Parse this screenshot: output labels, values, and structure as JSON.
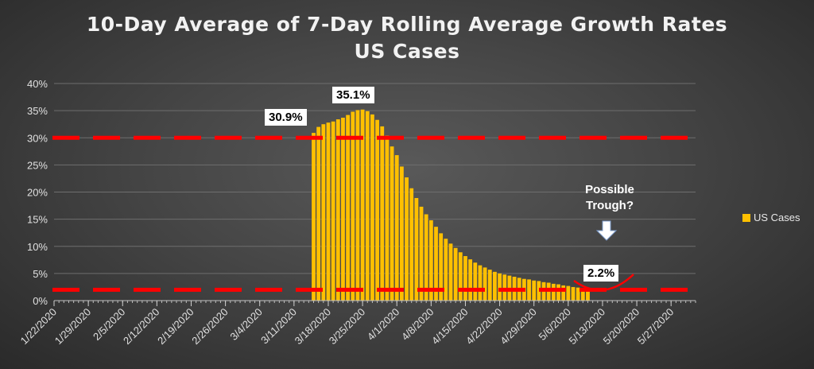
{
  "chart_data": {
    "type": "bar",
    "title": "10-Day Average of 7-Day Rolling Average Growth Rates",
    "subtitle": "US Cases",
    "xlabel": "",
    "ylabel": "",
    "ylim": [
      0,
      40
    ],
    "y_ticks": [
      "0%",
      "5%",
      "10%",
      "15%",
      "20%",
      "25%",
      "30%",
      "35%",
      "40%"
    ],
    "x_tick_labels": [
      "1/22/2020",
      "1/29/2020",
      "2/5/2020",
      "2/12/2020",
      "2/19/2020",
      "2/26/2020",
      "3/4/2020",
      "3/11/2020",
      "3/18/2020",
      "3/25/2020",
      "4/1/2020",
      "4/8/2020",
      "4/15/2020",
      "4/22/2020",
      "4/29/2020",
      "5/6/2020",
      "5/13/2020",
      "5/20/2020",
      "5/27/2020"
    ],
    "x_range": [
      "1/22/2020",
      "6/1/2020"
    ],
    "grid": true,
    "legend_position": "right",
    "series": [
      {
        "name": "US Cases",
        "color": "#ffc000",
        "start_date": "3/15/2020",
        "values": [
          30.9,
          32.0,
          32.5,
          32.8,
          33.0,
          33.4,
          33.7,
          34.2,
          34.8,
          35.1,
          35.2,
          34.9,
          34.3,
          33.3,
          32.1,
          30.4,
          28.4,
          26.8,
          24.7,
          22.7,
          20.7,
          18.9,
          17.3,
          15.9,
          14.8,
          13.6,
          12.4,
          11.4,
          10.5,
          9.7,
          8.9,
          8.2,
          7.6,
          7.0,
          6.5,
          6.1,
          5.7,
          5.3,
          5.0,
          4.8,
          4.6,
          4.4,
          4.2,
          4.0,
          3.9,
          3.7,
          3.6,
          3.4,
          3.3,
          3.1,
          3.0,
          2.8,
          2.7,
          2.5,
          2.4,
          2.3,
          2.2
        ]
      }
    ],
    "reference_lines": [
      {
        "value": 30,
        "color": "#ff0000",
        "style": "dashed"
      },
      {
        "value": 2,
        "color": "#ff0000",
        "style": "dashed"
      }
    ],
    "annotations": {
      "label_30_9": "30.9%",
      "label_35_1": "35.1%",
      "label_2_2": "2.2%",
      "possible_trough": "Possible Trough?"
    }
  },
  "legend": {
    "label": "US Cases"
  }
}
